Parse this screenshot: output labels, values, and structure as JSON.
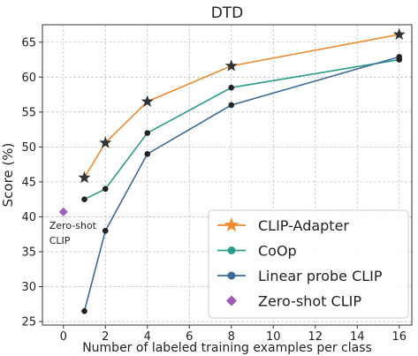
{
  "chart_data": {
    "type": "line",
    "title": "DTD",
    "xlabel": "Number of labeled training examples per class",
    "ylabel": "Score (%)",
    "xlim": [
      -1,
      16.6
    ],
    "ylim": [
      24.5,
      67.5
    ],
    "xticks": [
      0,
      2,
      4,
      6,
      8,
      10,
      12,
      14,
      16
    ],
    "yticks": [
      25,
      30,
      35,
      40,
      45,
      50,
      55,
      60,
      65
    ],
    "grid": true,
    "legend_position": "lower-right",
    "series": [
      {
        "name": "CLIP-Adapter",
        "color": "#f08a2e",
        "marker": "star",
        "x": [
          1,
          2,
          4,
          8,
          16
        ],
        "y": [
          45.6,
          50.6,
          56.5,
          61.6,
          66.1
        ]
      },
      {
        "name": "CoOp",
        "color": "#2a9d8a",
        "marker": "dot",
        "x": [
          1,
          2,
          4,
          8,
          16
        ],
        "y": [
          42.5,
          44.0,
          52.0,
          58.5,
          62.5
        ]
      },
      {
        "name": "Linear probe CLIP",
        "color": "#3a6a9e",
        "marker": "dot",
        "x": [
          1,
          2,
          4,
          8,
          16
        ],
        "y": [
          26.5,
          38.0,
          49.0,
          56.0,
          62.9
        ]
      },
      {
        "name": "Zero-shot CLIP",
        "color": "#9e5db8",
        "marker": "diamond",
        "x": [
          0
        ],
        "y": [
          40.7
        ]
      }
    ],
    "annotations": [
      {
        "text_lines": [
          "Zero-shot",
          "CLIP"
        ],
        "x": 0,
        "y": 40.7
      }
    ]
  }
}
